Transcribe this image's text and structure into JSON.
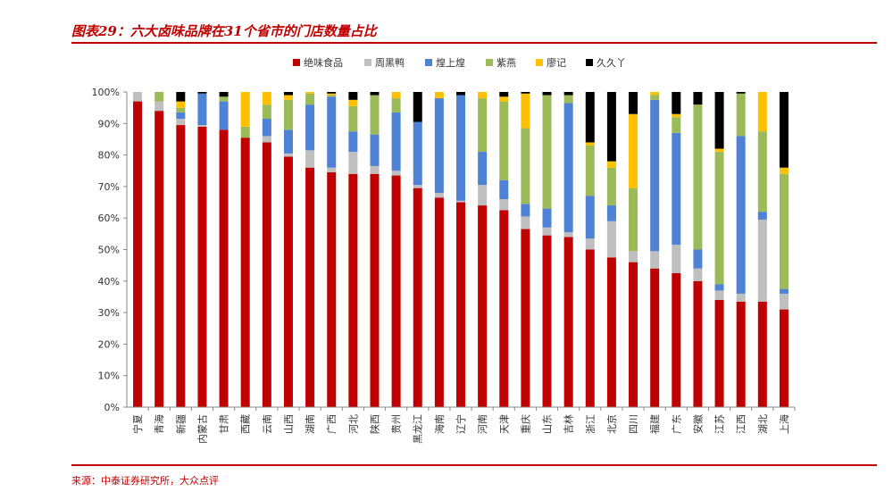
{
  "figure_title": "图表29：六大卤味品牌在31个省市的门店数量占比",
  "source": "来源：中泰证券研究所，大众点评",
  "chart_data": {
    "type": "bar",
    "stacked": true,
    "title": "",
    "xlabel": "",
    "ylabel": "",
    "ylim": [
      0,
      100
    ],
    "yticks": [
      "0%",
      "10%",
      "20%",
      "30%",
      "40%",
      "50%",
      "60%",
      "70%",
      "80%",
      "90%",
      "100%"
    ],
    "legend_position": "top",
    "grid": false,
    "categories": [
      "宁夏",
      "青海",
      "新疆",
      "内蒙古",
      "甘肃",
      "西藏",
      "云南",
      "山西",
      "湖南",
      "广西",
      "河北",
      "陕西",
      "贵州",
      "黑龙江",
      "海南",
      "辽宁",
      "河南",
      "天津",
      "重庆",
      "山东",
      "吉林",
      "浙江",
      "北京",
      "四川",
      "福建",
      "广东",
      "安徽",
      "江苏",
      "江西",
      "湖北",
      "上海"
    ],
    "series": [
      {
        "name": "绝味食品",
        "color": "#c00000",
        "values": [
          97,
          94,
          89.5,
          89,
          88,
          85.5,
          84,
          79.5,
          76,
          74.5,
          74,
          74,
          73.5,
          69.5,
          66.5,
          65,
          64,
          62.5,
          56.5,
          54.5,
          54,
          50,
          47.5,
          46,
          44,
          42.5,
          40,
          34,
          33.5,
          33.5,
          31
        ]
      },
      {
        "name": "周黑鸭",
        "color": "#bfbfbf",
        "values": [
          3,
          3,
          2,
          0.5,
          0,
          0,
          2,
          1,
          5.5,
          1.5,
          7,
          2.5,
          1.5,
          1,
          1.5,
          0.5,
          6.5,
          3.5,
          4,
          2.5,
          1.5,
          3.5,
          11.5,
          3.5,
          5.5,
          9,
          4,
          3,
          2.5,
          26,
          5
        ]
      },
      {
        "name": "煌上煌",
        "color": "#4f81d4",
        "values": [
          0,
          0,
          2,
          10,
          9,
          0,
          5.5,
          7.5,
          14.5,
          22.5,
          6.5,
          10,
          18.5,
          20,
          30,
          33.5,
          10.5,
          6,
          4,
          6,
          41,
          13.5,
          5,
          0,
          48,
          35.5,
          6,
          2,
          50,
          2.5,
          1.5
        ]
      },
      {
        "name": "紫燕",
        "color": "#9bbb59",
        "values": [
          0,
          3,
          1.5,
          0,
          1.5,
          3.5,
          4.5,
          9.5,
          3.5,
          0.5,
          8,
          12.5,
          4.5,
          0,
          0,
          0,
          17,
          25,
          24,
          36,
          2.5,
          16,
          12,
          20,
          1.5,
          5,
          46,
          42,
          13.5,
          25.5,
          36.5
        ]
      },
      {
        "name": "廖记",
        "color": "#ffc000",
        "values": [
          0,
          0,
          2,
          0,
          0,
          11,
          4,
          1.5,
          0.5,
          0.5,
          2,
          0,
          2,
          0,
          2,
          0,
          2,
          1.5,
          11,
          0,
          0,
          1,
          2,
          23.5,
          1,
          1,
          0,
          1,
          0,
          12.5,
          2
        ]
      },
      {
        "name": "久久丫",
        "color": "#000000",
        "values": [
          0,
          0,
          3,
          0.5,
          1.5,
          0,
          0,
          1,
          0,
          0.5,
          2.5,
          1,
          0,
          9.5,
          0,
          1,
          0,
          1.5,
          0.5,
          1,
          1,
          16,
          22,
          7,
          0,
          7,
          4,
          18,
          0.5,
          0,
          24
        ]
      }
    ]
  }
}
